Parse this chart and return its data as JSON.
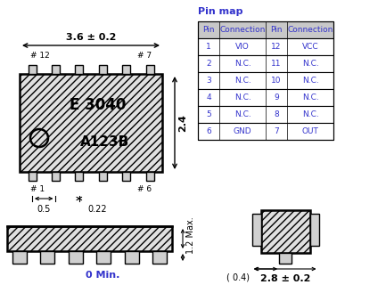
{
  "bg_color": "#ffffff",
  "line_color": "#000000",
  "blue_color": "#3333cc",
  "hatch_face": "#e0e0e0",
  "pin_face": "#d0d0d0",
  "pin_map": {
    "headers": [
      "Pin",
      "Connection",
      "Pin",
      "Connection"
    ],
    "rows": [
      [
        "1",
        "VIO",
        "12",
        "VCC"
      ],
      [
        "2",
        "N.C.",
        "11",
        "N.C."
      ],
      [
        "3",
        "N.C.",
        "10",
        "N.C."
      ],
      [
        "4",
        "N.C.",
        "9",
        "N.C."
      ],
      [
        "5",
        "N.C.",
        "8",
        "N.C."
      ],
      [
        "6",
        "GND",
        "7",
        "OUT"
      ]
    ]
  },
  "dim_36": "3.6 ± 0.2",
  "dim_24": "2.4",
  "dim_05": "0.5",
  "dim_022": "0.22",
  "dim_12": "1.2 Max.",
  "dim_0": "0 Min.",
  "dim_04": "( 0.4)",
  "dim_28": "2.8 ± 0.2",
  "label_e3040": "E 3040",
  "label_a123b": "A123B",
  "pin_map_title": "Pin map",
  "pin12": "# 12",
  "pin7": "# 7",
  "pin1": "# 1",
  "pin6": "# 6"
}
